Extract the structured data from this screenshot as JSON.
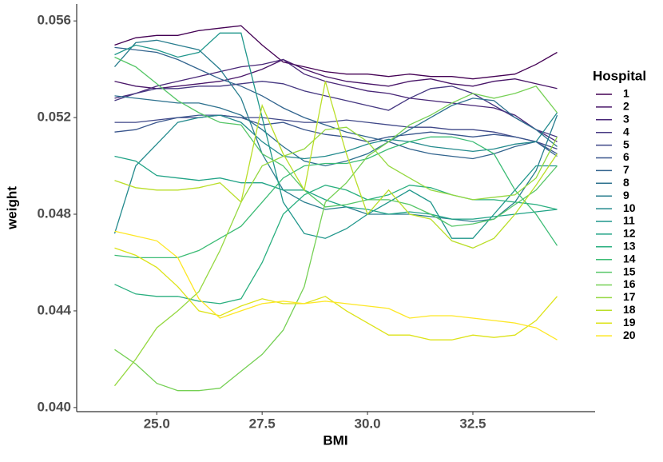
{
  "chart_data": {
    "type": "line",
    "x_label": "BMI",
    "y_label": "weight",
    "legend_title": "Hospital",
    "legend_position": "right",
    "xlim": [
      23.1,
      35.4
    ],
    "ylim": [
      0.03983,
      0.0567
    ],
    "xticks": [
      {
        "value": 25,
        "label": "25.0"
      },
      27.5,
      {
        "value": 30,
        "label": "30.0"
      },
      32.5
    ],
    "yticks": [
      {
        "value": 0.04,
        "label": "0.040"
      },
      {
        "value": 0.044,
        "label": "0.044"
      },
      {
        "value": 0.048,
        "label": "0.048"
      },
      {
        "value": 0.052,
        "label": "0.052"
      },
      {
        "value": 0.056,
        "label": "0.056"
      }
    ],
    "x": [
      24.0,
      24.5,
      25.0,
      25.5,
      26.0,
      26.5,
      27.0,
      27.5,
      28.0,
      28.5,
      29.0,
      29.5,
      30.0,
      30.5,
      31.0,
      31.5,
      32.0,
      32.5,
      33.0,
      33.5,
      34.0,
      34.5
    ],
    "series": [
      {
        "name": "1",
        "color": "#440154",
        "values": [
          0.055,
          0.0553,
          0.0554,
          0.0554,
          0.0556,
          0.0557,
          0.0558,
          0.055,
          0.0543,
          0.0541,
          0.0539,
          0.0538,
          0.0538,
          0.0537,
          0.0538,
          0.0537,
          0.0537,
          0.0536,
          0.0537,
          0.0538,
          0.0542,
          0.0547
        ]
      },
      {
        "name": "2",
        "color": "#481568",
        "values": [
          0.0535,
          0.0533,
          0.0532,
          0.0533,
          0.0534,
          0.0535,
          0.0537,
          0.054,
          0.0544,
          0.054,
          0.0537,
          0.0535,
          0.0534,
          0.0533,
          0.0535,
          0.0536,
          0.0534,
          0.0533,
          0.0535,
          0.0536,
          0.0534,
          0.0532
        ]
      },
      {
        "name": "3",
        "color": "#482677",
        "values": [
          0.0528,
          0.053,
          0.0533,
          0.0535,
          0.0537,
          0.0539,
          0.0541,
          0.0542,
          0.0544,
          0.0538,
          0.0535,
          0.0533,
          0.0531,
          0.053,
          0.0528,
          0.0527,
          0.0526,
          0.0525,
          0.0524,
          0.0521,
          0.0515,
          0.051
        ]
      },
      {
        "name": "4",
        "color": "#453781",
        "values": [
          0.0527,
          0.053,
          0.0532,
          0.0532,
          0.0533,
          0.0533,
          0.0534,
          0.0535,
          0.0534,
          0.0531,
          0.0529,
          0.0527,
          0.0525,
          0.0523,
          0.0528,
          0.0532,
          0.0533,
          0.053,
          0.0525,
          0.052,
          0.0515,
          0.0512
        ]
      },
      {
        "name": "5",
        "color": "#3F4788",
        "values": [
          0.0518,
          0.0518,
          0.0519,
          0.052,
          0.052,
          0.0521,
          0.052,
          0.052,
          0.0519,
          0.0518,
          0.0518,
          0.0519,
          0.0518,
          0.0517,
          0.0516,
          0.0516,
          0.0515,
          0.0515,
          0.0514,
          0.0512,
          0.051,
          0.0507
        ]
      },
      {
        "name": "6",
        "color": "#39558C",
        "values": [
          0.0514,
          0.0515,
          0.0518,
          0.052,
          0.0521,
          0.0521,
          0.052,
          0.0517,
          0.0518,
          0.0515,
          0.0513,
          0.0512,
          0.051,
          0.0512,
          0.0513,
          0.0514,
          0.0513,
          0.0512,
          0.0513,
          0.0512,
          0.051,
          0.0505
        ]
      },
      {
        "name": "7",
        "color": "#32648E",
        "values": [
          0.0549,
          0.0548,
          0.0547,
          0.0544,
          0.054,
          0.0536,
          0.0533,
          0.0529,
          0.0524,
          0.052,
          0.0517,
          0.0514,
          0.0512,
          0.051,
          0.0507,
          0.0505,
          0.0504,
          0.0503,
          0.0505,
          0.0508,
          0.051,
          0.0504
        ]
      },
      {
        "name": "8",
        "color": "#2D718E",
        "values": [
          0.0529,
          0.0528,
          0.0527,
          0.0526,
          0.0526,
          0.0524,
          0.0521,
          0.0515,
          0.0508,
          0.0502,
          0.05,
          0.0502,
          0.0505,
          0.051,
          0.0515,
          0.052,
          0.0525,
          0.0528,
          0.0527,
          0.052,
          0.0515,
          0.0508
        ]
      },
      {
        "name": "9",
        "color": "#287D8E",
        "values": [
          0.0541,
          0.0551,
          0.0552,
          0.055,
          0.0548,
          0.054,
          0.0528,
          0.0505,
          0.049,
          0.0485,
          0.0482,
          0.0483,
          0.048,
          0.048,
          0.048,
          0.0479,
          0.0478,
          0.0477,
          0.0478,
          0.0485,
          0.0498,
          0.0521
        ]
      },
      {
        "name": "10",
        "color": "#238A8D",
        "values": [
          0.0472,
          0.05,
          0.0509,
          0.0518,
          0.052,
          0.0521,
          0.0518,
          0.051,
          0.0504,
          0.0503,
          0.0504,
          0.0506,
          0.0509,
          0.0511,
          0.051,
          0.0508,
          0.0507,
          0.0506,
          0.0507,
          0.0509,
          0.051,
          0.0522
        ]
      },
      {
        "name": "11",
        "color": "#1F968B",
        "values": [
          0.0546,
          0.055,
          0.0548,
          0.0545,
          0.0547,
          0.0555,
          0.0555,
          0.052,
          0.0485,
          0.0472,
          0.047,
          0.0474,
          0.048,
          0.0485,
          0.049,
          0.0485,
          0.047,
          0.047,
          0.048,
          0.049,
          0.05,
          0.05
        ]
      },
      {
        "name": "12",
        "color": "#20A386",
        "values": [
          0.0504,
          0.0502,
          0.0496,
          0.0495,
          0.0494,
          0.0495,
          0.0493,
          0.0493,
          0.049,
          0.049,
          0.0486,
          0.0483,
          0.0482,
          0.048,
          0.0481,
          0.048,
          0.0478,
          0.0478,
          0.0479,
          0.048,
          0.0481,
          0.0482
        ]
      },
      {
        "name": "13",
        "color": "#29AF7F",
        "values": [
          0.0451,
          0.0447,
          0.0446,
          0.0446,
          0.0444,
          0.0443,
          0.0445,
          0.046,
          0.048,
          0.0488,
          0.0492,
          0.049,
          0.0486,
          0.0488,
          0.0492,
          0.0491,
          0.0488,
          0.0486,
          0.0486,
          0.0485,
          0.0484,
          0.0482
        ]
      },
      {
        "name": "14",
        "color": "#3CBC75",
        "values": [
          0.0463,
          0.0462,
          0.0462,
          0.0462,
          0.0465,
          0.047,
          0.0475,
          0.0485,
          0.0495,
          0.05,
          0.0501,
          0.0501,
          0.0503,
          0.0507,
          0.051,
          0.0512,
          0.0512,
          0.051,
          0.0505,
          0.049,
          0.048,
          0.0467
        ]
      },
      {
        "name": "15",
        "color": "#56C667",
        "values": [
          0.0545,
          0.0541,
          0.0534,
          0.0527,
          0.0522,
          0.0518,
          0.0517,
          0.0505,
          0.05,
          0.049,
          0.0483,
          0.0484,
          0.0486,
          0.0486,
          0.0484,
          0.048,
          0.0475,
          0.0476,
          0.0478,
          0.0484,
          0.049,
          0.05
        ]
      },
      {
        "name": "16",
        "color": "#75D054",
        "values": [
          0.0424,
          0.0418,
          0.041,
          0.0407,
          0.0407,
          0.0408,
          0.0415,
          0.0422,
          0.0432,
          0.045,
          0.0485,
          0.0493,
          0.0504,
          0.051,
          0.0517,
          0.0521,
          0.0526,
          0.053,
          0.0528,
          0.053,
          0.0533,
          0.0522
        ]
      },
      {
        "name": "17",
        "color": "#95D840",
        "values": [
          0.0409,
          0.042,
          0.0433,
          0.044,
          0.0448,
          0.0465,
          0.0485,
          0.05,
          0.0504,
          0.0507,
          0.0515,
          0.0516,
          0.051,
          0.05,
          0.0495,
          0.049,
          0.0488,
          0.0486,
          0.0487,
          0.0488,
          0.0495,
          0.0512
        ]
      },
      {
        "name": "18",
        "color": "#BADE28",
        "values": [
          0.0494,
          0.0491,
          0.049,
          0.049,
          0.0491,
          0.0493,
          0.0485,
          0.0525,
          0.0505,
          0.049,
          0.0535,
          0.0505,
          0.048,
          0.049,
          0.048,
          0.0478,
          0.0469,
          0.0466,
          0.047,
          0.048,
          0.0492,
          0.0505
        ]
      },
      {
        "name": "19",
        "color": "#DDE318",
        "values": [
          0.0466,
          0.0463,
          0.0458,
          0.045,
          0.044,
          0.0438,
          0.0442,
          0.0445,
          0.0443,
          0.0443,
          0.0446,
          0.044,
          0.0435,
          0.043,
          0.043,
          0.0428,
          0.0428,
          0.043,
          0.0429,
          0.043,
          0.0436,
          0.0446
        ]
      },
      {
        "name": "20",
        "color": "#FDE725",
        "values": [
          0.0473,
          0.0471,
          0.0469,
          0.0462,
          0.0445,
          0.0437,
          0.044,
          0.0443,
          0.0444,
          0.0443,
          0.0444,
          0.0443,
          0.0442,
          0.0441,
          0.0437,
          0.0438,
          0.0438,
          0.0437,
          0.0436,
          0.0435,
          0.0433,
          0.0428
        ]
      }
    ]
  }
}
